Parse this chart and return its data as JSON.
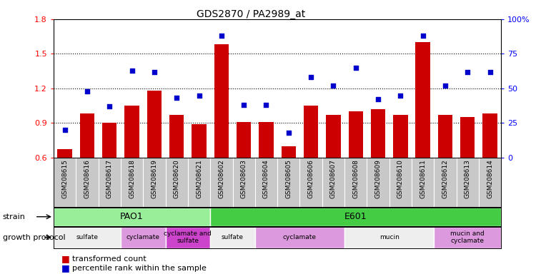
{
  "title": "GDS2870 / PA2989_at",
  "samples": [
    "GSM208615",
    "GSM208616",
    "GSM208617",
    "GSM208618",
    "GSM208619",
    "GSM208620",
    "GSM208621",
    "GSM208602",
    "GSM208603",
    "GSM208604",
    "GSM208605",
    "GSM208606",
    "GSM208607",
    "GSM208608",
    "GSM208609",
    "GSM208610",
    "GSM208611",
    "GSM208612",
    "GSM208613",
    "GSM208614"
  ],
  "bar_values": [
    0.67,
    0.98,
    0.9,
    1.05,
    1.18,
    0.97,
    0.89,
    1.58,
    0.91,
    0.91,
    0.7,
    1.05,
    0.97,
    1.0,
    1.02,
    0.97,
    1.6,
    0.97,
    0.95,
    0.98
  ],
  "scatter_values": [
    20,
    48,
    37,
    63,
    62,
    43,
    45,
    88,
    38,
    38,
    18,
    58,
    52,
    65,
    42,
    45,
    88,
    52,
    62,
    62
  ],
  "ylim_left": [
    0.6,
    1.8
  ],
  "ylim_right": [
    0,
    100
  ],
  "yticks_left": [
    0.6,
    0.9,
    1.2,
    1.5,
    1.8
  ],
  "yticks_right": [
    0,
    25,
    50,
    75,
    100
  ],
  "bar_color": "#CC0000",
  "scatter_color": "#0000CC",
  "pao1_color": "#99EE99",
  "e601_color": "#44CC44",
  "sulfate_color": "#EEEEEE",
  "cyclamate_color": "#DD99DD",
  "cyclamate_sulfate_color": "#CC44CC",
  "growth_protocols": [
    {
      "start": 0,
      "end": 3,
      "label": "sulfate",
      "color": "#EEEEEE"
    },
    {
      "start": 3,
      "end": 5,
      "label": "cyclamate",
      "color": "#DD99DD"
    },
    {
      "start": 5,
      "end": 7,
      "label": "cyclamate and\nsulfate",
      "color": "#CC44CC"
    },
    {
      "start": 7,
      "end": 9,
      "label": "sulfate",
      "color": "#EEEEEE"
    },
    {
      "start": 9,
      "end": 13,
      "label": "cyclamate",
      "color": "#DD99DD"
    },
    {
      "start": 13,
      "end": 17,
      "label": "mucin",
      "color": "#EEEEEE"
    },
    {
      "start": 17,
      "end": 20,
      "label": "mucin and\ncyclamate",
      "color": "#DD99DD"
    }
  ],
  "legend_bar_label": "transformed count",
  "legend_scatter_label": "percentile rank within the sample",
  "strain_label": "strain",
  "growth_label": "growth protocol",
  "bg_color": "#FFFFFF",
  "tick_bg_color": "#C8C8C8",
  "hline_color": "black",
  "hline_vals": [
    0.9,
    1.2,
    1.5
  ]
}
